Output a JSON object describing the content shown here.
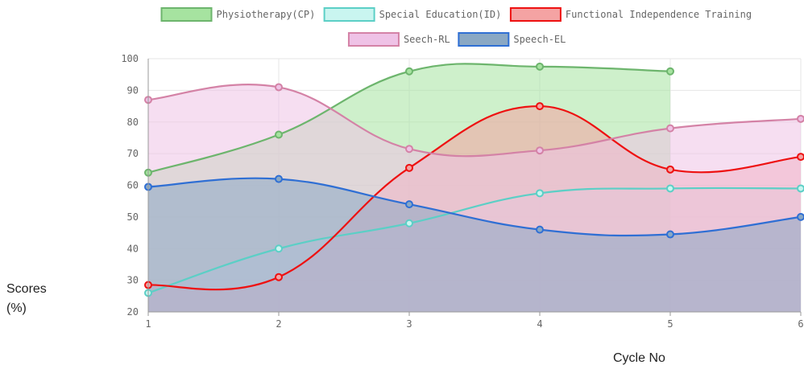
{
  "chart_data": {
    "type": "area",
    "title": "",
    "xlabel": "Cycle No",
    "ylabel": "Scores (%)",
    "x": [
      1,
      2,
      3,
      4,
      5,
      6
    ],
    "x_tick_labels": [
      "1",
      "2",
      "3",
      "4",
      "5",
      "6"
    ],
    "ylim": [
      20,
      100
    ],
    "y_ticks": [
      20,
      30,
      40,
      50,
      60,
      70,
      80,
      90,
      100
    ],
    "grid": true,
    "legend_position": "top",
    "series": [
      {
        "name": "Physiotherapy(CP)",
        "values": [
          64,
          76,
          96,
          97.5,
          96,
          null
        ],
        "stroke": "#6db56d",
        "fill": "#a6e3a0"
      },
      {
        "name": "Special Education(ID)",
        "values": [
          26,
          40,
          48,
          57.5,
          59,
          59
        ],
        "stroke": "#5ccfc6",
        "fill": "#c9f5f0"
      },
      {
        "name": "Functional Independence Training",
        "values": [
          28.5,
          31,
          65.5,
          85,
          65,
          69
        ],
        "stroke": "#ee1111",
        "fill": "#f4a3a3"
      },
      {
        "name": "Seech-RL",
        "values": [
          87,
          91,
          71.5,
          71,
          78,
          81
        ],
        "stroke": "#d482a6",
        "fill": "#efc2e6"
      },
      {
        "name": "Speech-EL",
        "values": [
          59.5,
          62,
          54,
          46,
          44.5,
          50
        ],
        "stroke": "#2f6fd4",
        "fill": "#8aa8c4"
      }
    ]
  }
}
